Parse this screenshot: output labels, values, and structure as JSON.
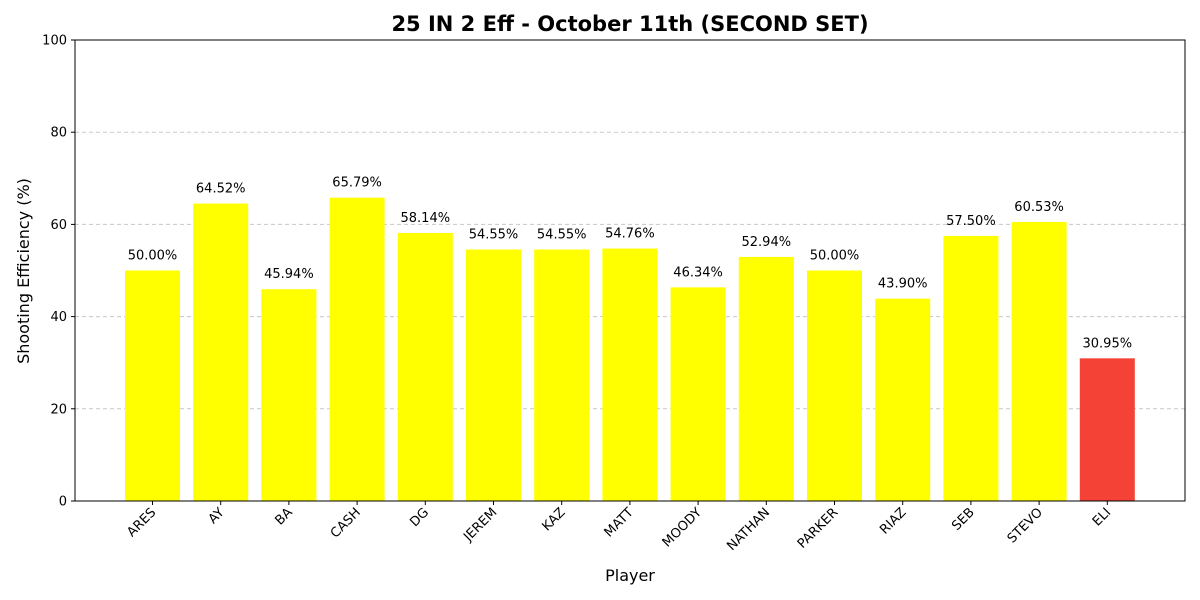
{
  "chart_data": {
    "type": "bar",
    "title": "25 IN 2 Eff - October 11th (SECOND SET)",
    "xlabel": "Player",
    "ylabel": "Shooting Efficiency (%)",
    "ylim": [
      0,
      100
    ],
    "yticks": [
      0,
      20,
      40,
      60,
      80,
      100
    ],
    "grid": "y-dashed",
    "categories": [
      "ARES",
      "AY",
      "BA",
      "CASH",
      "DG",
      "JEREM",
      "KAZ",
      "MATT",
      "MOODY",
      "NATHAN",
      "PARKER",
      "RIAZ",
      "SEB",
      "STEVO",
      "ELI"
    ],
    "values": [
      50.0,
      64.52,
      45.94,
      65.79,
      58.14,
      54.55,
      54.55,
      54.76,
      46.34,
      52.94,
      50.0,
      43.9,
      57.5,
      60.53,
      30.95
    ],
    "data_labels": [
      "50.00%",
      "64.52%",
      "45.94%",
      "65.79%",
      "58.14%",
      "54.55%",
      "54.55%",
      "54.76%",
      "46.34%",
      "52.94%",
      "50.00%",
      "43.90%",
      "57.50%",
      "60.53%",
      "30.95%"
    ],
    "colors": [
      "#ffff00",
      "#ffff00",
      "#ffff00",
      "#ffff00",
      "#ffff00",
      "#ffff00",
      "#ffff00",
      "#ffff00",
      "#ffff00",
      "#ffff00",
      "#ffff00",
      "#ffff00",
      "#ffff00",
      "#ffff00",
      "#f44336"
    ]
  }
}
